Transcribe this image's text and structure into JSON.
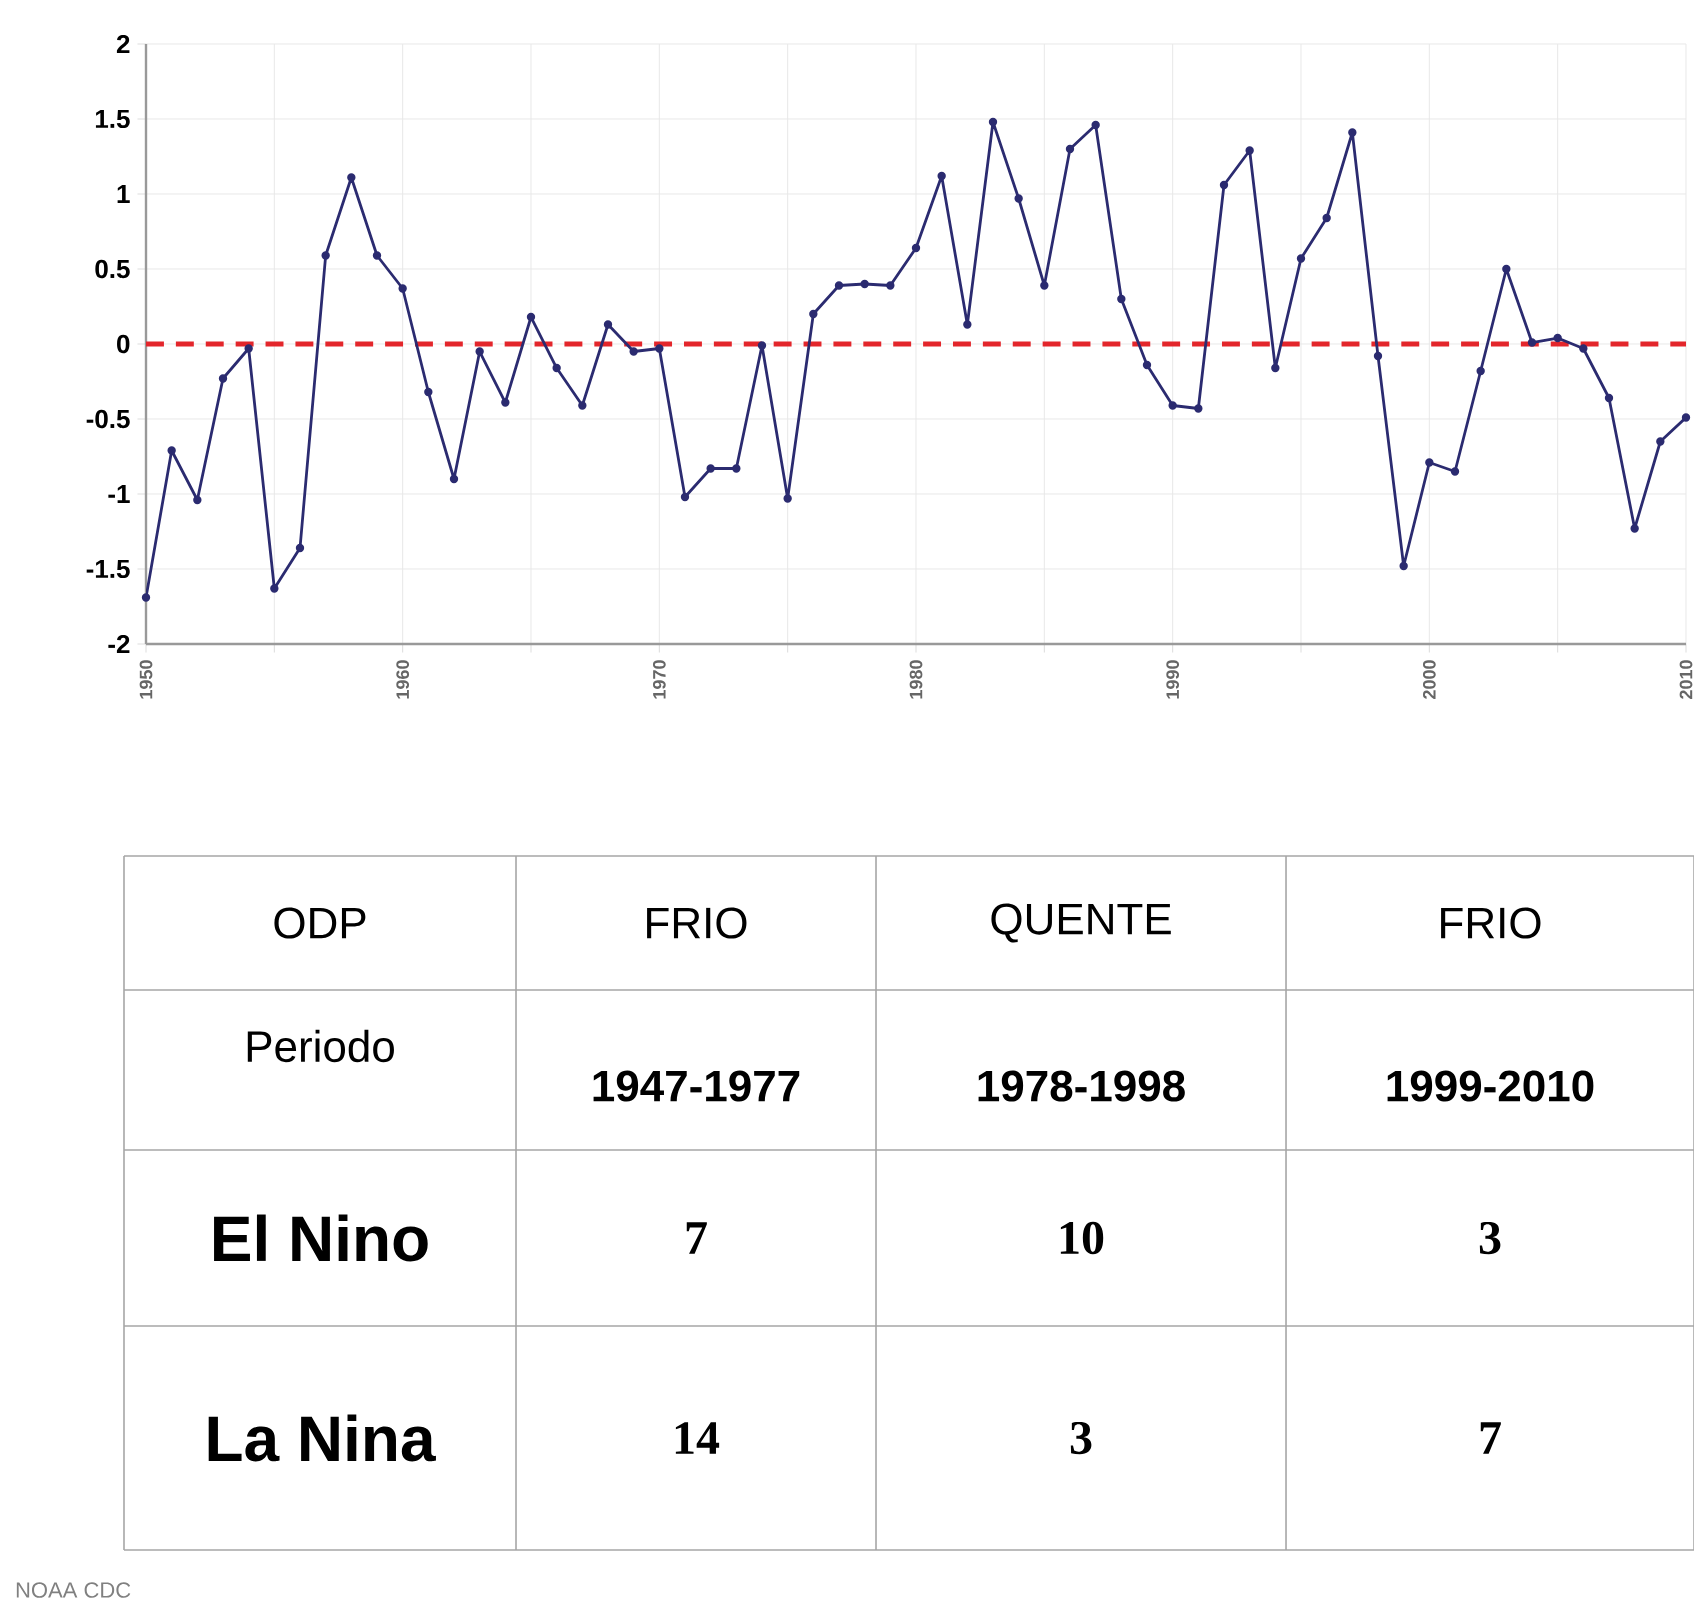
{
  "chart_data": [
    {
      "type": "line",
      "x": [
        1950,
        1951,
        1952,
        1953,
        1954,
        1955,
        1956,
        1957,
        1958,
        1959,
        1960,
        1961,
        1962,
        1963,
        1964,
        1965,
        1966,
        1967,
        1968,
        1969,
        1970,
        1971,
        1972,
        1973,
        1974,
        1975,
        1976,
        1977,
        1978,
        1979,
        1980,
        1981,
        1982,
        1983,
        1984,
        1985,
        1986,
        1987,
        1988,
        1989,
        1990,
        1991,
        1992,
        1993,
        1994,
        1995,
        1996,
        1997,
        1998,
        1999,
        2000,
        2001,
        2002,
        2003,
        2004,
        2005,
        2006,
        2007,
        2008,
        2009,
        2010
      ],
      "series": [
        {
          "color": "#2b2b70",
          "values": [
            -1.69,
            -0.71,
            -1.04,
            -0.23,
            -0.03,
            -1.63,
            -1.36,
            0.59,
            1.11,
            0.59,
            0.37,
            -0.32,
            -0.9,
            -0.05,
            -0.39,
            0.18,
            -0.16,
            -0.41,
            0.13,
            -0.05,
            -0.03,
            -1.02,
            -0.83,
            -0.83,
            -0.01,
            -1.03,
            0.2,
            0.39,
            0.4,
            0.39,
            0.64,
            1.12,
            0.13,
            1.48,
            0.97,
            0.39,
            1.3,
            1.46,
            0.3,
            -0.14,
            -0.41,
            -0.43,
            1.06,
            1.29,
            -0.16,
            0.57,
            0.84,
            1.41,
            -0.08,
            -1.48,
            -0.79,
            -0.85,
            -0.18,
            0.5,
            0.01,
            0.04,
            -0.03,
            -0.36,
            -1.23,
            -0.65,
            -0.49
          ]
        }
      ],
      "xlim": [
        1950,
        2010
      ],
      "ylim": [
        -2,
        2
      ],
      "xticks": [
        1950,
        {
          "value": 1955,
          "label": null
        },
        1960,
        {
          "value": 1965,
          "label": null
        },
        1970,
        {
          "value": 1975,
          "label": null
        },
        1980,
        {
          "value": 1985,
          "label": null
        },
        1990,
        {
          "value": 1995,
          "label": null
        },
        2000,
        {
          "value": 2005,
          "label": null
        },
        2010
      ],
      "yticks": [
        -2,
        -1.5,
        -1,
        -0.5,
        0,
        0.5,
        1,
        1.5,
        2
      ],
      "grid": true,
      "marker": "circle",
      "line_style": "solid",
      "ref_lines": [
        {
          "axis": "y",
          "value": 0,
          "color": "#e3262b",
          "line_style": "dashed"
        }
      ],
      "annotations": [
        "NOAA CDC"
      ]
    },
    {
      "type": "other",
      "categories": [
        "ODP",
        "FRIO",
        "QUENTE",
        "FRIO"
      ],
      "annotations": [
        "Periodo",
        "1947-1977",
        "1978-1998",
        "1999-2010",
        "El Nino",
        "7",
        "10",
        "3",
        "La Nina",
        "14",
        "3",
        "7"
      ]
    }
  ]
}
